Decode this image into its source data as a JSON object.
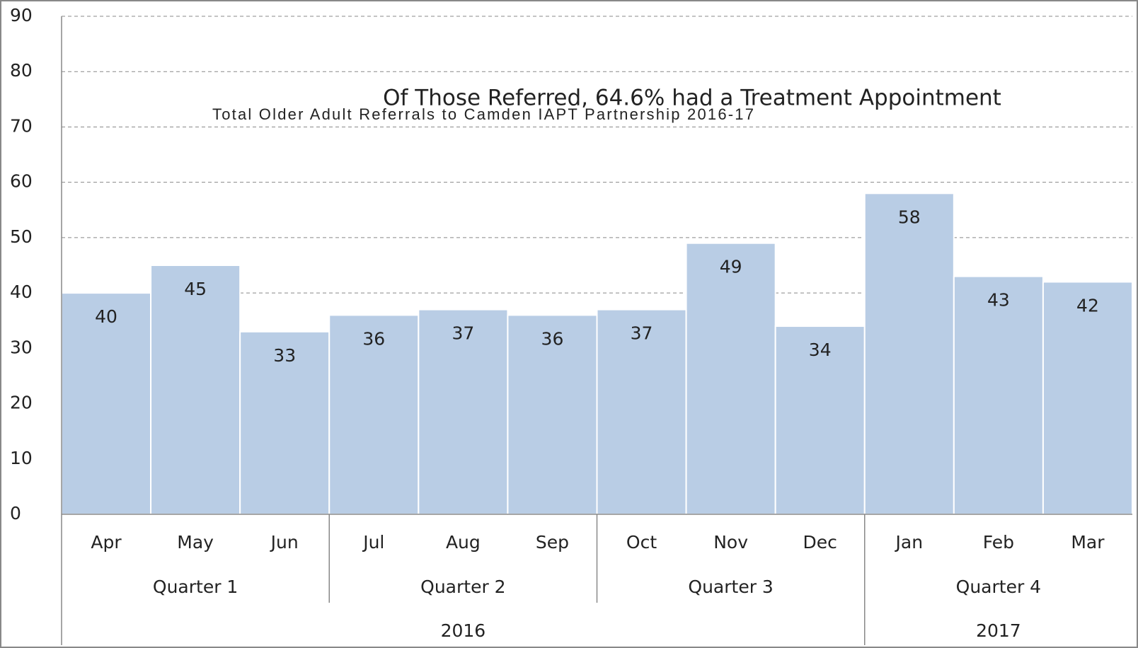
{
  "chart_data": {
    "type": "bar",
    "title": "Of Those Referred,  64.6% had a Treatment Appointment",
    "subtitle": "Total Older Adult Referrals to Camden IAPT Partnership 2016-17",
    "categories": [
      "Apr",
      "May",
      "Jun",
      "Jul",
      "Aug",
      "Sep",
      "Oct",
      "Nov",
      "Dec",
      "Jan",
      "Feb",
      "Mar"
    ],
    "groups": [
      {
        "label": "Quarter 1",
        "span": 3
      },
      {
        "label": "Quarter 2",
        "span": 3
      },
      {
        "label": "Quarter 3",
        "span": 3
      },
      {
        "label": "Quarter 4",
        "span": 3
      }
    ],
    "supergroups": [
      {
        "label": "2016",
        "span": 9
      },
      {
        "label": "2017",
        "span": 3
      }
    ],
    "values": [
      40,
      45,
      33,
      36,
      37,
      36,
      37,
      49,
      34,
      58,
      43,
      42
    ],
    "color": "#b9cde5",
    "ylim": [
      0,
      90
    ],
    "yticks": [
      0,
      10,
      20,
      30,
      40,
      50,
      60,
      70,
      80,
      90
    ],
    "grid": true
  }
}
